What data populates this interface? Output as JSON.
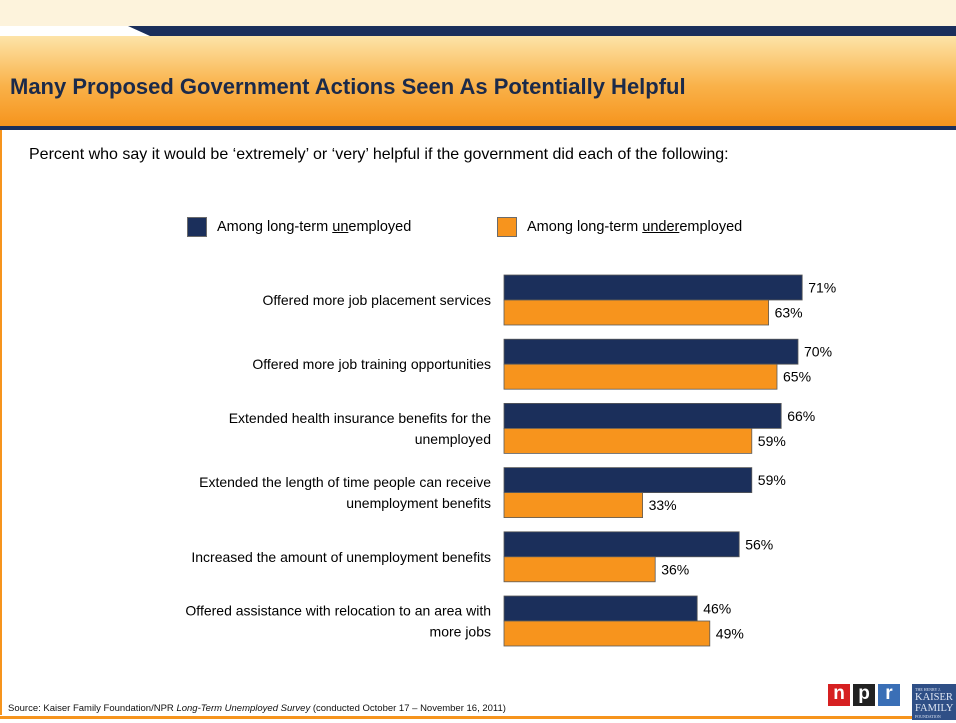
{
  "header": {
    "title": "Many Proposed Government Actions Seen As Potentially Helpful"
  },
  "subtitle": "Percent who say it would be ‘extremely’ or ‘very’ helpful if the government did each of the following:",
  "legend": {
    "series1_before": "Among long-term ",
    "series1_underlined": "un",
    "series1_after": "employed",
    "series2_before": "Among long-term ",
    "series2_underlined": "under",
    "series2_after": "employed"
  },
  "chart_data": {
    "type": "bar",
    "orientation": "horizontal",
    "categories": [
      [
        "Offered more job placement services"
      ],
      [
        "Offered more job training opportunities"
      ],
      [
        "Extended health insurance benefits for the",
        "unemployed"
      ],
      [
        "Extended the length of time people can receive",
        "unemployment benefits"
      ],
      [
        "Increased the amount of unemployment benefits"
      ],
      [
        "Offered assistance with relocation to an area with",
        "more jobs"
      ]
    ],
    "series": [
      {
        "name": "Among long-term unemployed",
        "color": "#1b2f5b",
        "values": [
          71,
          70,
          66,
          59,
          56,
          46
        ]
      },
      {
        "name": "Among long-term underemployed",
        "color": "#f7941d",
        "values": [
          63,
          65,
          59,
          33,
          36,
          49
        ]
      }
    ],
    "value_suffix": "%",
    "xlim": [
      0,
      100
    ],
    "legend_position": "top",
    "grid": false
  },
  "footer": {
    "source_before": "Source: Kaiser Family Foundation/NPR ",
    "source_italic": "Long-Term Unemployed Survey",
    "source_after": " (conducted October 17 – November 16, 2011)"
  },
  "logos": {
    "npr_letters": [
      "n",
      "p",
      "r"
    ],
    "npr_colors": [
      "#d62021",
      "#222222",
      "#3a6fb6"
    ],
    "kff_top": "THE HENRY J.",
    "kff_line1": "KAISER",
    "kff_line2": "FAMILY",
    "kff_bottom": "FOUNDATION"
  }
}
